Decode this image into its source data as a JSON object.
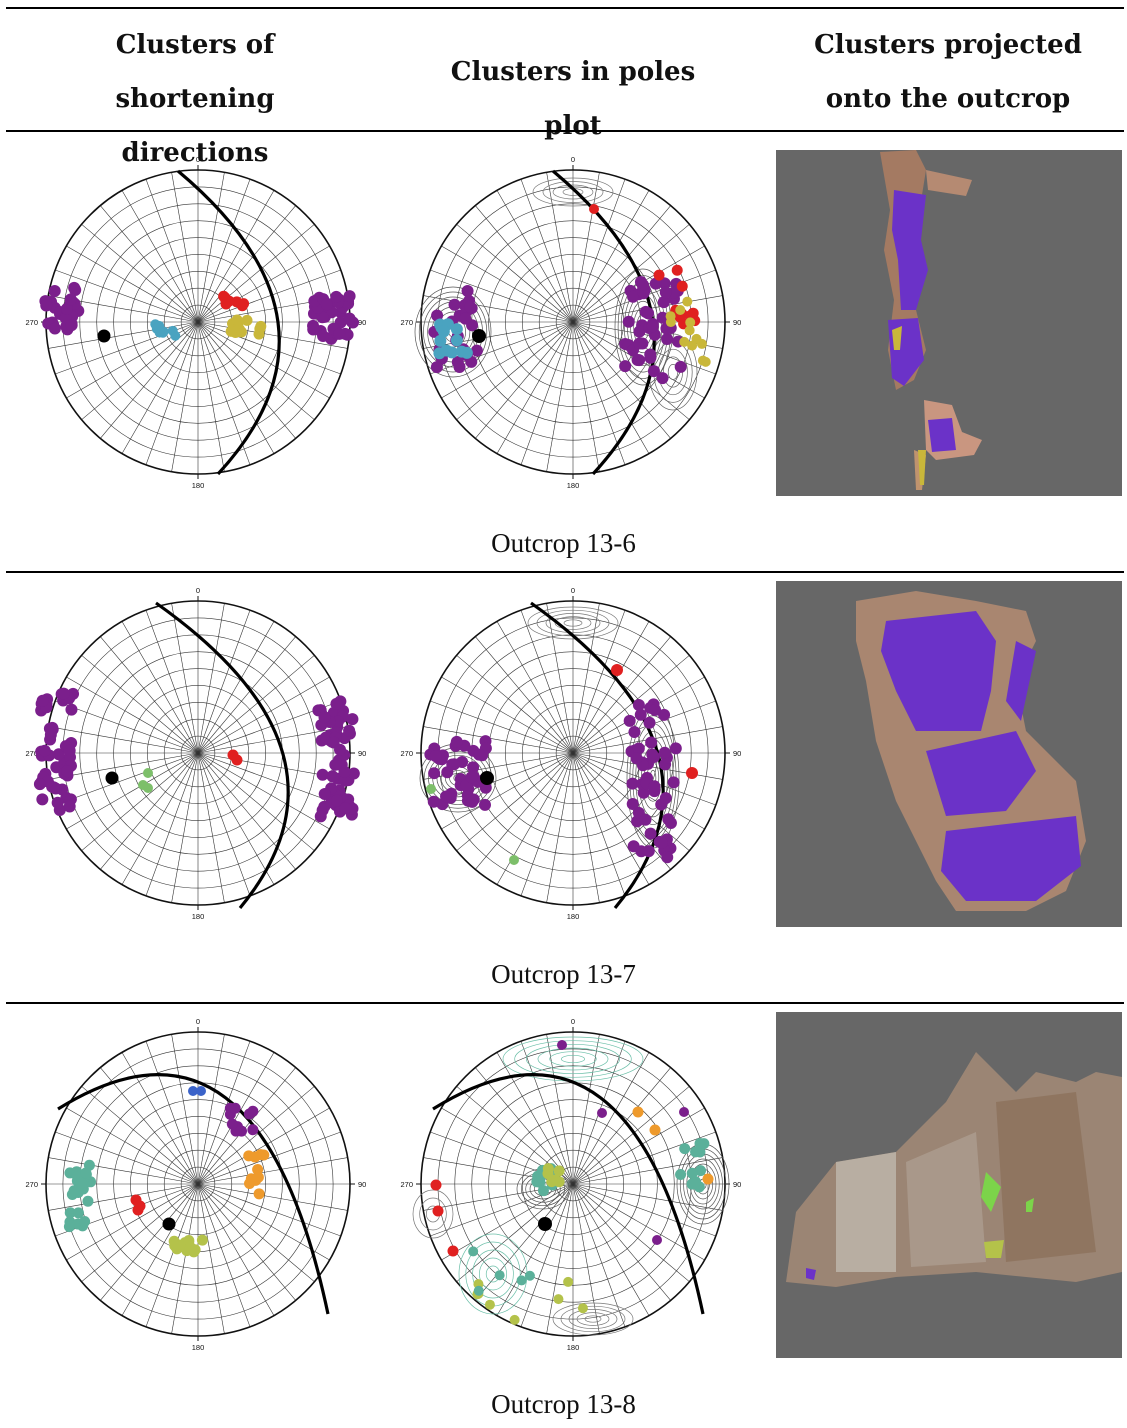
{
  "headers": {
    "col1": "Clusters of\nshortening directions",
    "col2": "Clusters in poles plot",
    "col3": "Clusters projected\nonto the outcrop"
  },
  "azimuth_labels": {
    "north": "0",
    "east": "90",
    "south": "180",
    "west": "270"
  },
  "colors": {
    "purple": "#7b1f8c",
    "red": "#e02020",
    "teal_blue": "#4aa3c0",
    "olive": "#c9b73a",
    "green": "#7dbf6a",
    "blue": "#3b63c9",
    "orange": "#ee9a2c",
    "teal": "#5bb09a",
    "yellow_green": "#b4c24a",
    "black": "#000000",
    "outcrop_bg": "#676767"
  },
  "rows": [
    {
      "caption": "Outcrop 13-6"
    },
    {
      "caption": "Outcrop 13-7"
    },
    {
      "caption": "Outcrop 13-8"
    }
  ]
}
